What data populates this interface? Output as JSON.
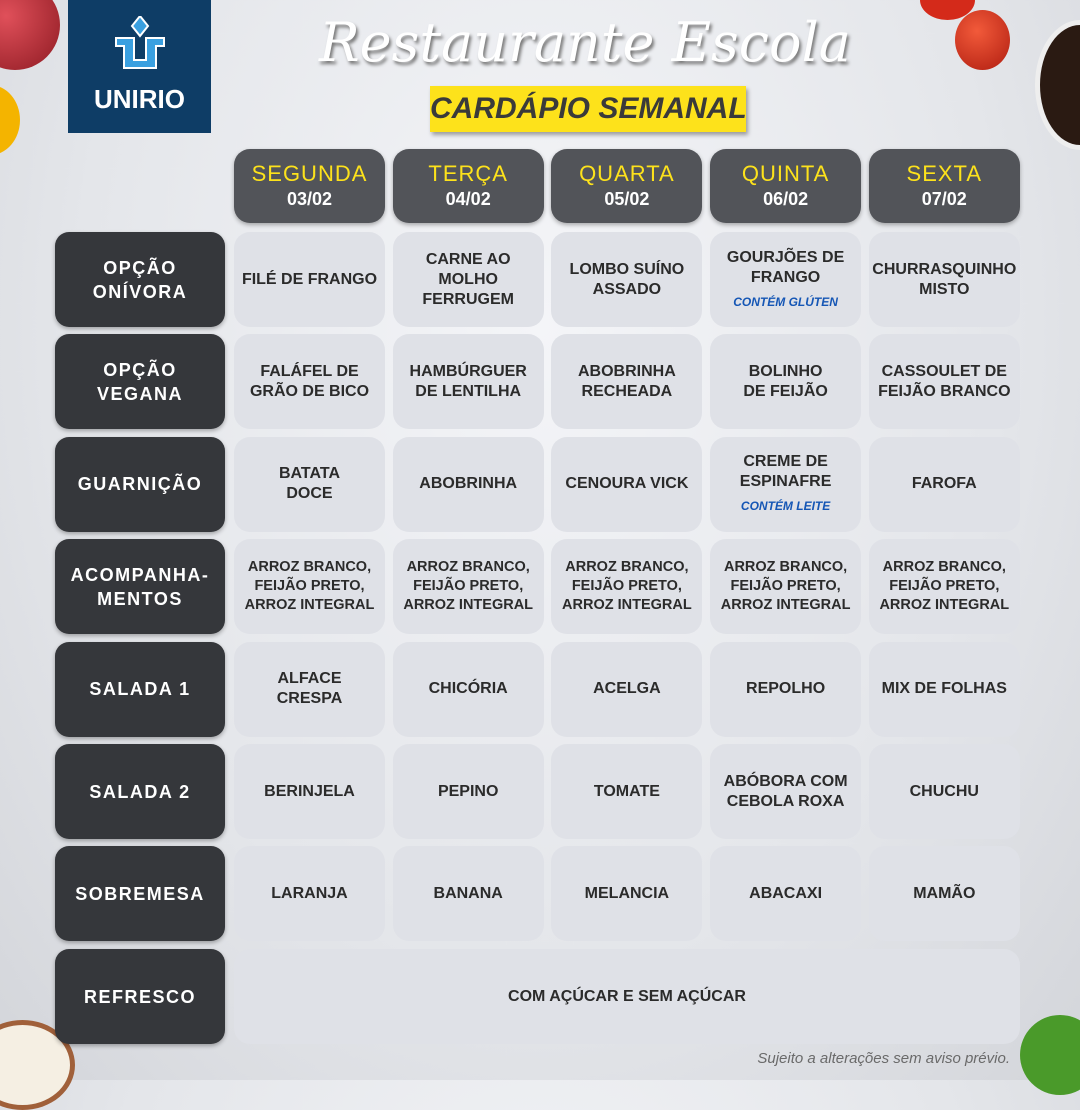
{
  "logo": {
    "text": "UNIRIO"
  },
  "header": {
    "title": "Restaurante Escola",
    "subtitle": "CARDÁPIO SEMANAL"
  },
  "days": [
    {
      "name": "SEGUNDA",
      "date": "03/02"
    },
    {
      "name": "TERÇA",
      "date": "04/02"
    },
    {
      "name": "QUARTA",
      "date": "05/02"
    },
    {
      "name": "QUINTA",
      "date": "06/02"
    },
    {
      "name": "SEXTA",
      "date": "07/02"
    }
  ],
  "rows": [
    {
      "label": "OPÇÃO\nONÍVORA",
      "cells": [
        {
          "text": "FILÉ DE FRANGO"
        },
        {
          "text": "CARNE AO\nMOLHO FERRUGEM"
        },
        {
          "text": "LOMBO SUÍNO\nASSADO"
        },
        {
          "text": "GOURJÕES DE\nFRANGO",
          "note": "CONTÉM GLÚTEN"
        },
        {
          "text": "CHURRASQUINHO\nMISTO"
        }
      ]
    },
    {
      "label": "OPÇÃO\nVEGANA",
      "cells": [
        {
          "text": "FALÁFEL DE\nGRÃO DE BICO"
        },
        {
          "text": "HAMBÚRGUER\nDE LENTILHA"
        },
        {
          "text": "ABOBRINHA\nRECHEADA"
        },
        {
          "text": "BOLINHO\nDE FEIJÃO"
        },
        {
          "text": "CASSOULET DE\nFEIJÃO BRANCO"
        }
      ]
    },
    {
      "label": "GUARNIÇÃO",
      "cells": [
        {
          "text": "BATATA\nDOCE"
        },
        {
          "text": "ABOBRINHA"
        },
        {
          "text": "CENOURA VICK"
        },
        {
          "text": "CREME DE\nESPINAFRE",
          "note": "CONTÉM LEITE"
        },
        {
          "text": "FAROFA"
        }
      ]
    },
    {
      "label": "ACOMPANHA-\nMENTOS",
      "cells": [
        {
          "text": "ARROZ BRANCO,\nFEIJÃO PRETO,\nARROZ INTEGRAL"
        },
        {
          "text": "ARROZ BRANCO,\nFEIJÃO PRETO,\nARROZ INTEGRAL"
        },
        {
          "text": "ARROZ BRANCO,\nFEIJÃO PRETO,\nARROZ INTEGRAL"
        },
        {
          "text": "ARROZ BRANCO,\nFEIJÃO PRETO,\nARROZ INTEGRAL"
        },
        {
          "text": "ARROZ BRANCO,\nFEIJÃO PRETO,\nARROZ INTEGRAL"
        }
      ]
    },
    {
      "label": "SALADA 1",
      "cells": [
        {
          "text": "ALFACE\nCRESPA"
        },
        {
          "text": "CHICÓRIA"
        },
        {
          "text": "ACELGA"
        },
        {
          "text": "REPOLHO"
        },
        {
          "text": "MIX DE FOLHAS"
        }
      ]
    },
    {
      "label": "SALADA 2",
      "cells": [
        {
          "text": "BERINJELA"
        },
        {
          "text": "PEPINO"
        },
        {
          "text": "TOMATE"
        },
        {
          "text": "ABÓBORA COM\nCEBOLA ROXA"
        },
        {
          "text": "CHUCHU"
        }
      ]
    },
    {
      "label": "SOBREMESA",
      "cells": [
        {
          "text": "LARANJA"
        },
        {
          "text": "BANANA"
        },
        {
          "text": "MELANCIA"
        },
        {
          "text": "ABACAXI"
        },
        {
          "text": "MAMÃO"
        }
      ]
    }
  ],
  "refresco": {
    "label": "REFRESCO",
    "text": "COM AÇÚCAR E SEM AÇÚCAR"
  },
  "footer": {
    "disclaimer": "Sujeito a alterações sem aviso prévio."
  },
  "colors": {
    "accent": "#fde21b",
    "header_bg": "#525459",
    "label_bg": "#35373b",
    "cell_bg": "#dfe1e7",
    "note": "#1556b5",
    "logo_bg": "#0e3d66"
  }
}
